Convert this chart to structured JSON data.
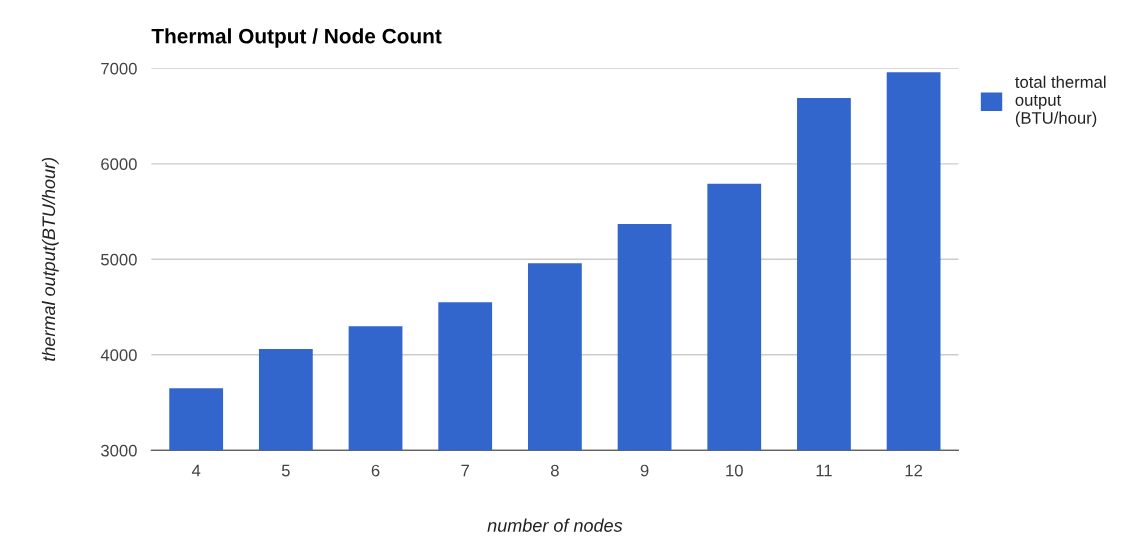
{
  "chart_data": {
    "type": "bar",
    "title": "Thermal Output / Node Count",
    "xlabel": "number of nodes",
    "ylabel": "thermal output(BTU/hour)",
    "categories": [
      "4",
      "5",
      "6",
      "7",
      "8",
      "9",
      "10",
      "11",
      "12"
    ],
    "series": [
      {
        "name": "total thermal\noutput\n(BTU/hour)",
        "color": "#3366cc",
        "values": [
          3650,
          4060,
          4300,
          4550,
          4960,
          5370,
          5790,
          6690,
          6960
        ]
      }
    ],
    "ylim": [
      3000,
      7000
    ],
    "yticks": [
      3000,
      4000,
      5000,
      6000,
      7000
    ],
    "grid": "y",
    "legend": "top right"
  }
}
